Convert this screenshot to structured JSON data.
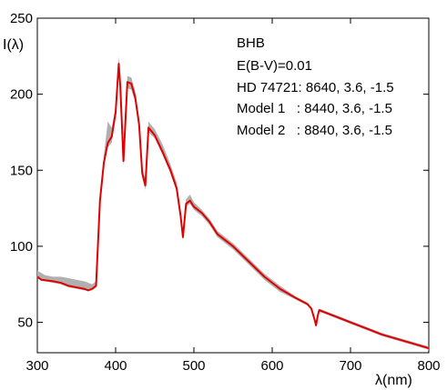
{
  "chart_data": {
    "type": "line",
    "ylabel": "I(λ)",
    "xlabel": "λ(nm)",
    "xlim": [
      300,
      800
    ],
    "ylim": [
      30,
      250
    ],
    "xticks": [
      300,
      400,
      500,
      600,
      700,
      800
    ],
    "yticks": [
      50,
      100,
      150,
      200,
      250
    ],
    "grid": false,
    "annotations": [
      "BHB",
      "E(B-V)=0.01",
      "HD 74721: 8640, 3.6, -1.5",
      "Model 1   : 8440, 3.6, -1.5",
      "Model 2   : 8840, 3.6, -1.5"
    ],
    "series": [
      {
        "color": "#e00000",
        "style": "line",
        "x": [
          300,
          305,
          320,
          330,
          340,
          350,
          360,
          365,
          370,
          375,
          380,
          385,
          390,
          395,
          400,
          404,
          406,
          410,
          415,
          420,
          425,
          430,
          434,
          438,
          442,
          450,
          460,
          470,
          478,
          483,
          486,
          490,
          495,
          500,
          510,
          520,
          530,
          550,
          570,
          590,
          610,
          630,
          645,
          650,
          654,
          656,
          658,
          660,
          665,
          680,
          700,
          720,
          740,
          760,
          780,
          800
        ],
        "y": [
          80,
          78,
          77,
          76,
          74,
          73,
          72,
          71,
          72,
          74,
          130,
          155,
          168,
          172,
          188,
          220,
          205,
          156,
          208,
          207,
          198,
          180,
          148,
          140,
          178,
          173,
          162,
          150,
          138,
          120,
          106,
          128,
          130,
          126,
          122,
          116,
          108,
          100,
          90,
          80,
          72,
          66,
          62,
          59,
          52,
          48,
          54,
          58,
          57,
          54,
          50,
          46,
          42,
          39,
          36,
          33
        ]
      },
      {
        "color": "#b0b0b0",
        "style": "band",
        "x": [
          300,
          310,
          320,
          330,
          340,
          350,
          360,
          370,
          375,
          380,
          385,
          390,
          395,
          400,
          404,
          406,
          410,
          415,
          420,
          425,
          430,
          434,
          438,
          442,
          450,
          460,
          470,
          478,
          483,
          486,
          490,
          495,
          500,
          510,
          520,
          530,
          550,
          570,
          590,
          610,
          630,
          645,
          650,
          654,
          656,
          658,
          660,
          665,
          680,
          700,
          720,
          740,
          760,
          780,
          800
        ],
        "upper": [
          84,
          81,
          80,
          80,
          79,
          78,
          77,
          75,
          77,
          134,
          160,
          182,
          178,
          192,
          225,
          210,
          162,
          212,
          211,
          202,
          185,
          152,
          144,
          182,
          177,
          167,
          154,
          142,
          124,
          110,
          131,
          134,
          129,
          124,
          118,
          110,
          102,
          92,
          82,
          74,
          67,
          63,
          60,
          53,
          49,
          55,
          59,
          58,
          55,
          51,
          47,
          43,
          40,
          37,
          34
        ],
        "lower": [
          79,
          77,
          76,
          75,
          73,
          72,
          71,
          71,
          73,
          128,
          153,
          165,
          168,
          185,
          216,
          202,
          153,
          204,
          203,
          195,
          177,
          145,
          137,
          175,
          171,
          160,
          148,
          136,
          118,
          104,
          126,
          128,
          124,
          120,
          114,
          106,
          98,
          88,
          78,
          70,
          65,
          61,
          58,
          51,
          47,
          53,
          57,
          56,
          53,
          49,
          45,
          41,
          38,
          35,
          32
        ]
      }
    ]
  }
}
